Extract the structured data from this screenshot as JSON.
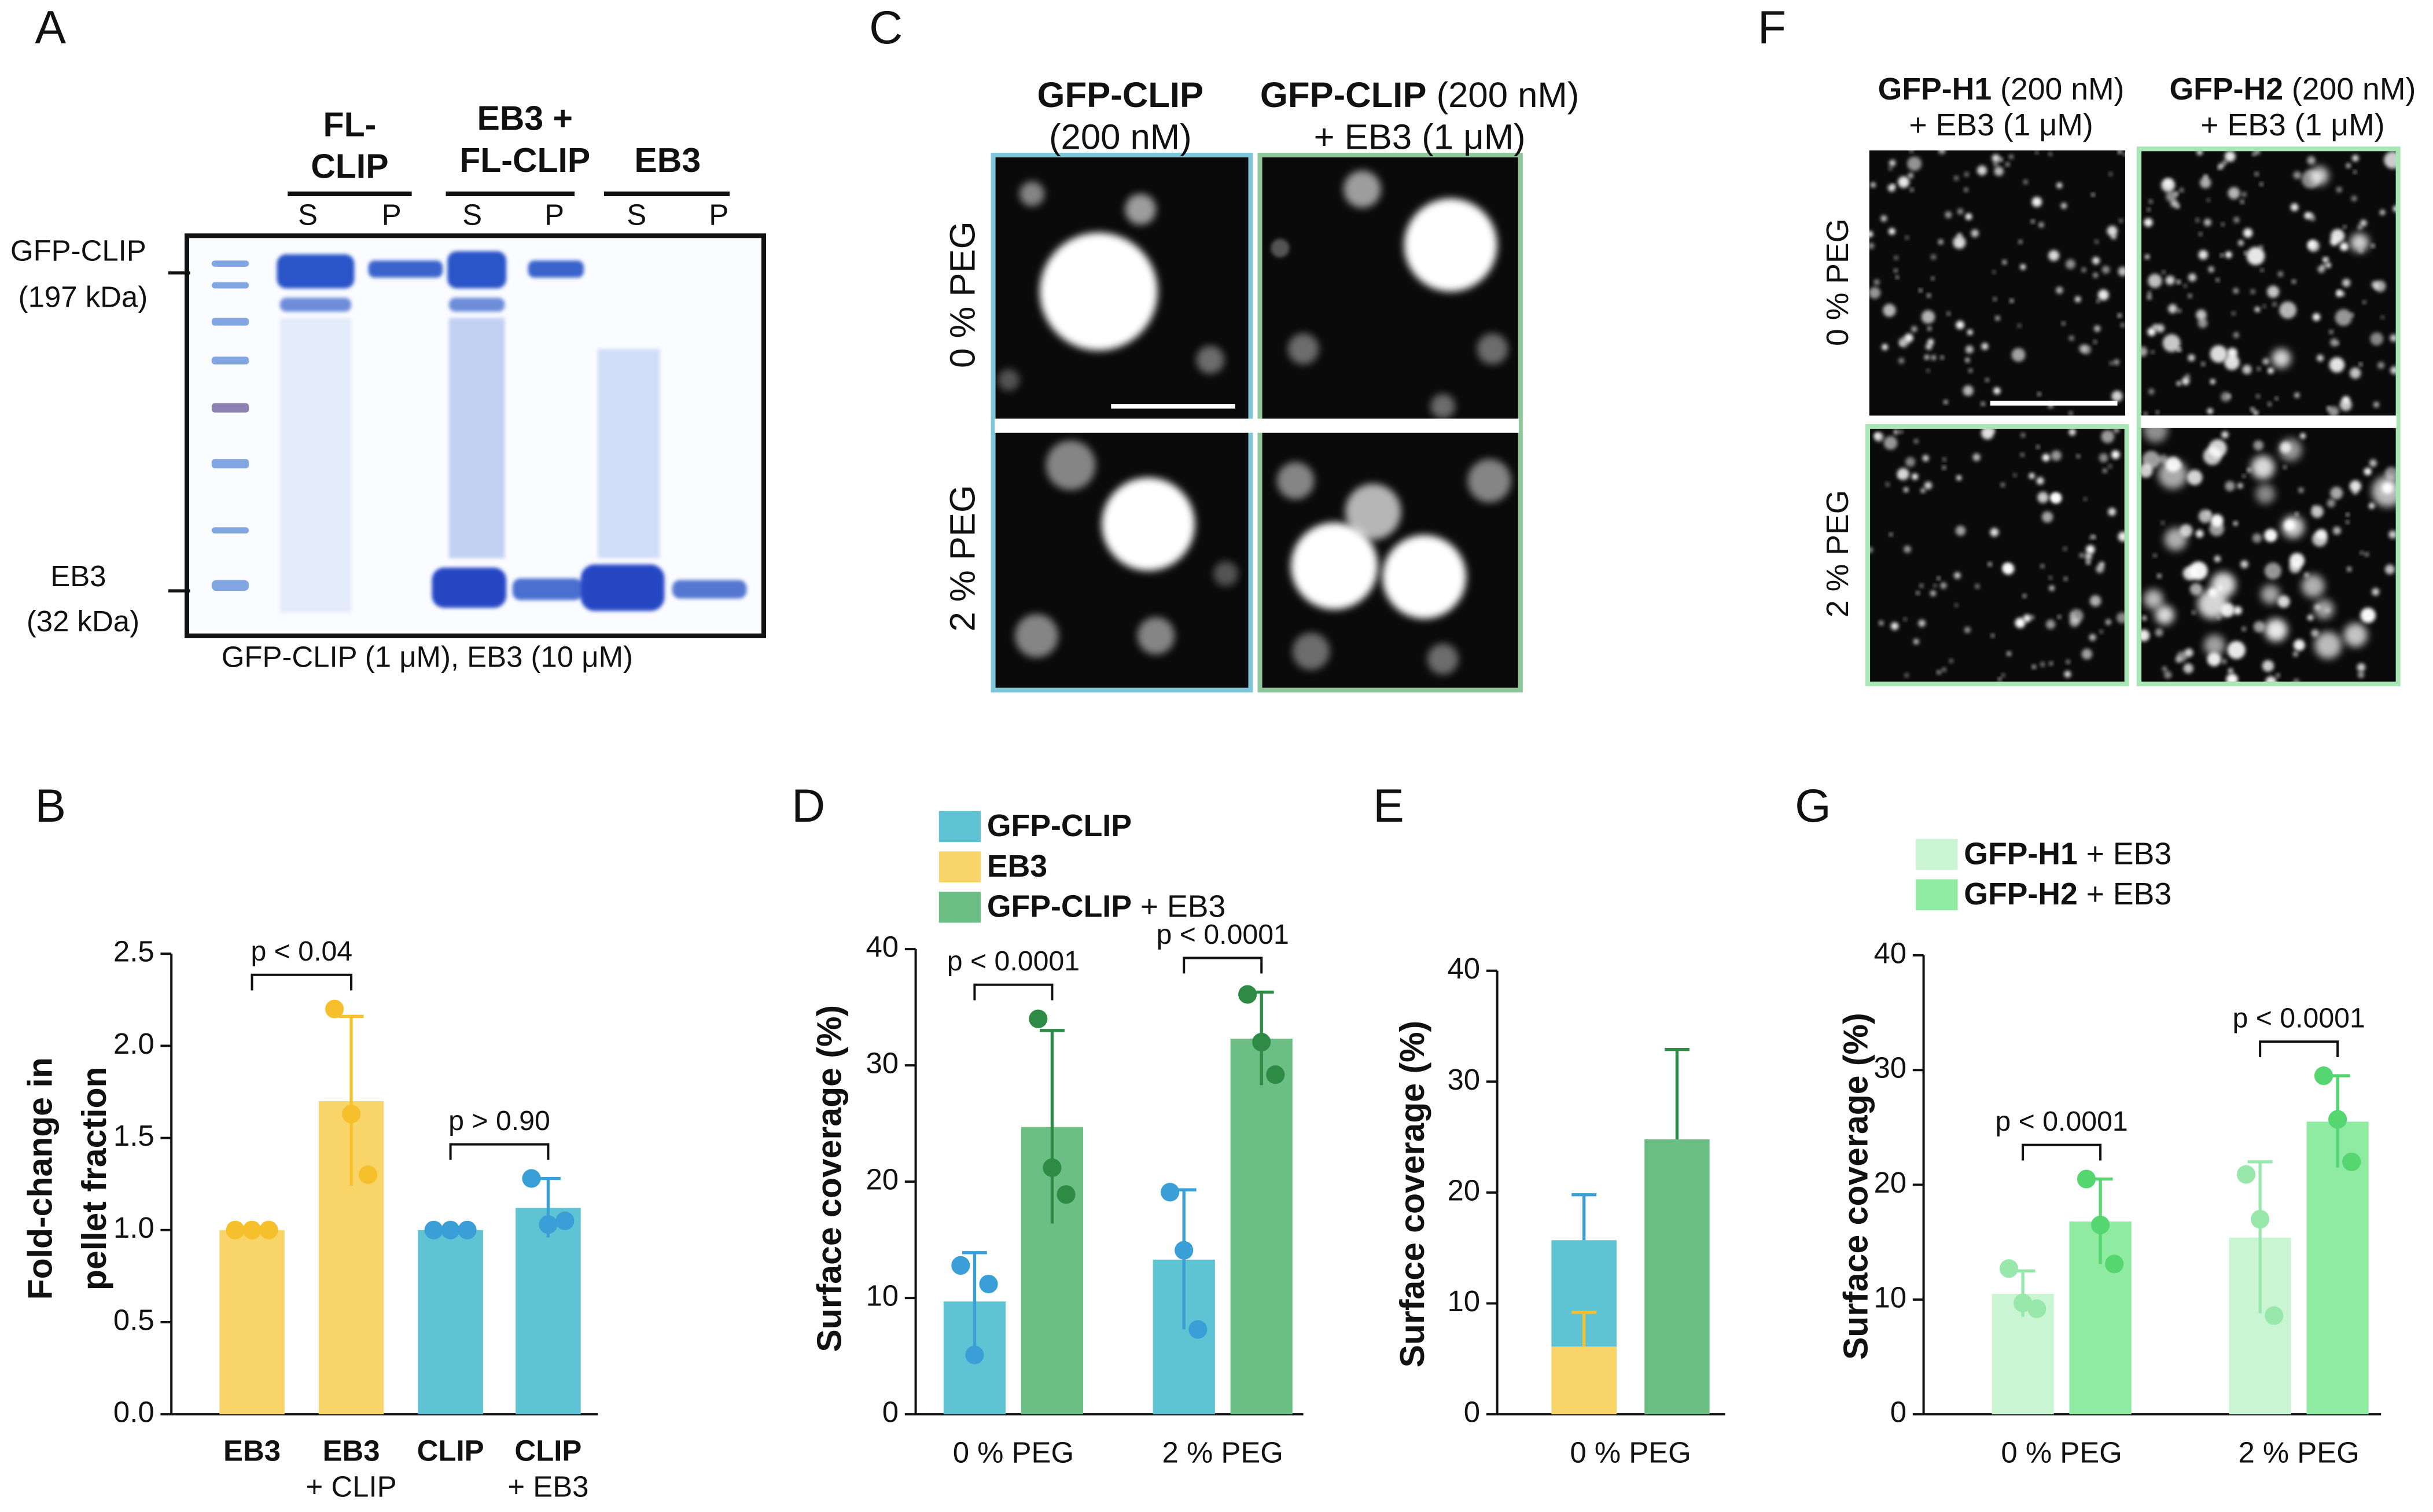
{
  "panel_labels": [
    "A",
    "B",
    "C",
    "D",
    "E",
    "F",
    "G"
  ],
  "gel": {
    "lane_groups": [
      [
        "FL-",
        "CLIP"
      ],
      [
        "EB3 +",
        "FL-CLIP"
      ],
      [
        "EB3"
      ]
    ],
    "fractions": [
      "S",
      "P",
      "S",
      "P",
      "S",
      "P"
    ],
    "markers": [
      [
        "GFP-CLIP",
        "(197 kDa)"
      ],
      [
        "EB3",
        "(32 kDa)"
      ]
    ],
    "caption": "GFP-CLIP (1 μM), EB3 (10 μM)"
  },
  "micrographs_clip": {
    "columns": [
      [
        "GFP-CLIP",
        "(200 nM)"
      ],
      [
        "GFP-CLIP (200 nM)",
        "+ EB3 (1 μM)"
      ]
    ],
    "rows": [
      "0 % PEG",
      "2 % PEG"
    ]
  },
  "micrographs_h": {
    "columns": [
      [
        "GFP-H1 (200 nM)",
        "+ EB3 (1 μM)"
      ],
      [
        "GFP-H2 (200 nM)",
        "+ EB3 (1 μM)"
      ]
    ],
    "rows": [
      "0 % PEG",
      "2 % PEG"
    ]
  },
  "chart_data": [
    {
      "type": "bar_points",
      "ylabel": [
        "Fold-change in",
        "pellet fraction"
      ],
      "categories": [
        [
          "EB3"
        ],
        [
          "EB3",
          "+ CLIP"
        ],
        [
          "CLIP"
        ],
        [
          "CLIP",
          "+ EB3"
        ]
      ],
      "values": [
        1.0,
        1.7,
        1.0,
        1.12
      ],
      "errors": [
        0,
        0.46,
        0,
        0.16
      ],
      "points": [
        [
          1,
          1,
          1
        ],
        [
          2.2,
          1.63,
          1.3
        ],
        [
          1,
          1,
          1
        ],
        [
          1.28,
          1.03,
          1.05
        ]
      ],
      "colors": [
        "#f9d468",
        "#f9d468",
        "#5ec4d4",
        "#5ec4d4"
      ],
      "point_colors": [
        "#f6c02c",
        "#f6c02c",
        "#3a9fd6",
        "#3a9fd6"
      ],
      "ylim": [
        0,
        2.5
      ],
      "yticks": [
        {
          "value": 0,
          "label": "0.0"
        },
        0.5,
        {
          "value": 1,
          "label": "1.0"
        },
        1.5,
        {
          "value": 2,
          "label": "2.0"
        },
        2.5
      ],
      "significance": [
        {
          "text": "p < 0.04",
          "bars": [
            0,
            1
          ]
        },
        {
          "text": "p > 0.90",
          "bars": [
            2,
            3
          ]
        }
      ]
    },
    {
      "type": "grouped_bar_points",
      "ylabel": "Surface coverage (%)",
      "categories": [
        "0 % PEG",
        "2 % PEG"
      ],
      "series": [
        {
          "name": "GFP-CLIP",
          "color": "#5ec4d4",
          "point_color": "#3a9fd6",
          "values": [
            9.7,
            13.3
          ],
          "errors": [
            4.2,
            6.0
          ],
          "points": [
            [
              12.8,
              5.1,
              11.2
            ],
            [
              19.1,
              14.1,
              7.3
            ]
          ]
        },
        {
          "name": "EB3",
          "color": "#f9d468",
          "point_color": "#f6c02c",
          "values": [
            null,
            null
          ],
          "errors": [
            null,
            null
          ],
          "points": [
            [],
            []
          ]
        },
        {
          "name": "GFP-CLIP + EB3",
          "color": "#6cbf84",
          "point_color": "#2e8b45",
          "values": [
            24.7,
            32.3
          ],
          "errors": [
            8.3,
            4.0
          ],
          "points": [
            [
              34,
              21.2,
              18.9
            ],
            [
              36.1,
              32,
              29.2
            ]
          ]
        }
      ],
      "ylim": [
        0,
        40
      ],
      "yticks": [
        0,
        10,
        20,
        30,
        40
      ],
      "significance": [
        {
          "text": "p < 0.0001",
          "category": 0
        },
        {
          "text": "p < 0.0001",
          "category": 1
        }
      ]
    },
    {
      "type": "stacked_bar",
      "ylabel": "Surface coverage (%)",
      "categories": [
        "0 % PEG"
      ],
      "bars": [
        {
          "segments": [
            {
              "color": "#f9d468",
              "error_color": "#f6c02c",
              "value": 6.1,
              "error": 3.1
            },
            {
              "color": "#5ec4d4",
              "error_color": "#3a9fd6",
              "value": 9.6,
              "error": 4.1
            }
          ]
        },
        {
          "segments": [
            {
              "color": "#6cbf84",
              "error_color": "#2e8b45",
              "value": 24.8,
              "error": 8.1
            }
          ]
        }
      ],
      "ylim": [
        0,
        40
      ],
      "yticks": [
        0,
        10,
        20,
        30,
        40
      ]
    },
    {
      "type": "grouped_bar_points",
      "ylabel": "Surface coverage (%)",
      "categories": [
        "0 % PEG",
        "2 % PEG"
      ],
      "series": [
        {
          "name": "GFP-H1 + EB3",
          "color": "#c9f5d3",
          "point_color": "#98e8ab",
          "values": [
            10.5,
            15.4
          ],
          "errors": [
            2.0,
            6.6
          ],
          "points": [
            [
              12.7,
              9.7,
              9.2
            ],
            [
              20.9,
              17,
              8.6
            ]
          ]
        },
        {
          "name": "GFP-H2 + EB3",
          "color": "#90eba2",
          "point_color": "#55d670",
          "values": [
            16.8,
            25.5
          ],
          "errors": [
            3.7,
            4.0
          ],
          "points": [
            [
              20.5,
              16.5,
              13.1
            ],
            [
              29.5,
              25.7,
              22
            ]
          ]
        }
      ],
      "ylim": [
        0,
        40
      ],
      "yticks": [
        0,
        10,
        20,
        30,
        40
      ],
      "significance": [
        {
          "text": "p < 0.0001",
          "category": 0
        },
        {
          "text": "p < 0.0001",
          "category": 1
        }
      ]
    }
  ]
}
